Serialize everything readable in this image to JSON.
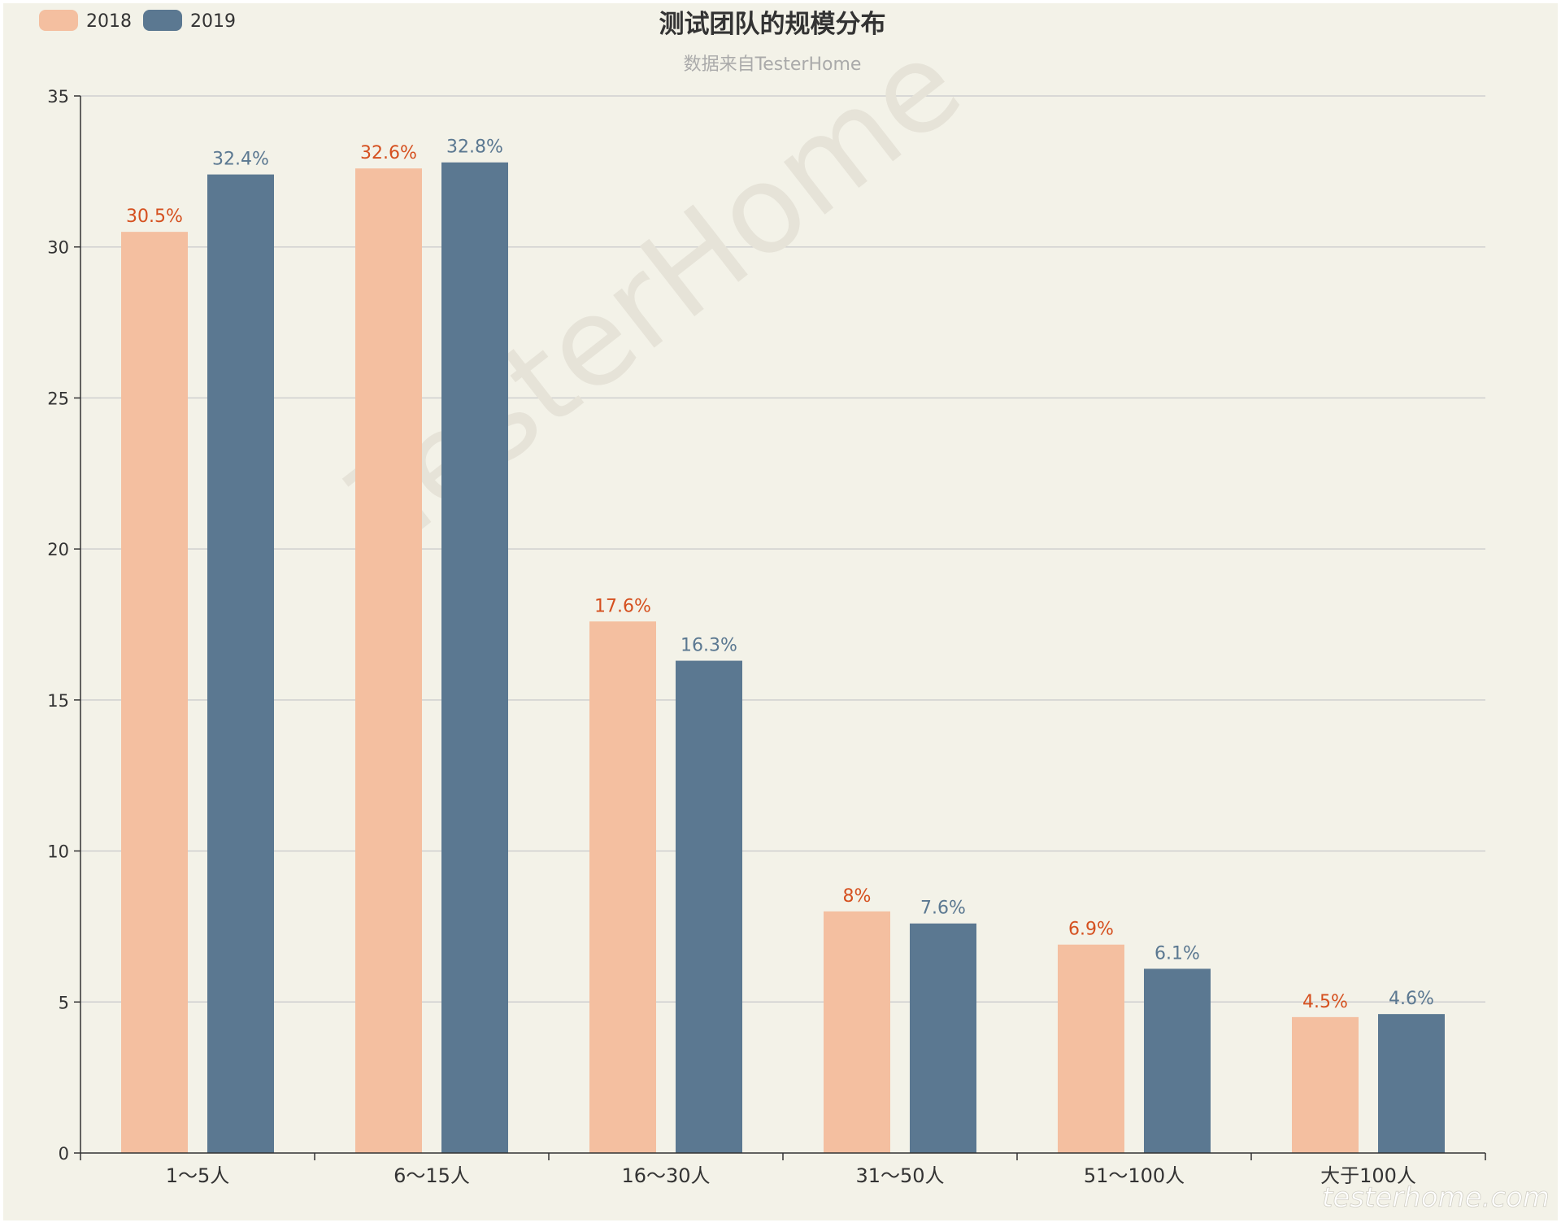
{
  "chart_data": {
    "type": "bar",
    "title": "测试团队的规模分布",
    "subtitle": "数据来自TesterHome",
    "categories": [
      "1～5人",
      "6～15人",
      "16～30人",
      "31～50人",
      "51～100人",
      "大于100人"
    ],
    "series": [
      {
        "name": "2018",
        "values": [
          30.5,
          32.6,
          17.6,
          8,
          6.9,
          4.5
        ],
        "labels": [
          "30.5%",
          "32.6%",
          "17.6%",
          "8%",
          "6.9%",
          "4.5%"
        ],
        "color": "#f4bfa0",
        "label_color": "#d5501f"
      },
      {
        "name": "2019",
        "values": [
          32.4,
          32.8,
          16.3,
          7.6,
          6.1,
          4.6
        ],
        "labels": [
          "32.4%",
          "32.8%",
          "16.3%",
          "7.6%",
          "6.1%",
          "4.6%"
        ],
        "color": "#5b7891",
        "label_color": "#5b7891"
      }
    ],
    "ylim": [
      0,
      35
    ],
    "yticks": [
      "0",
      "5",
      "10",
      "15",
      "20",
      "25",
      "30",
      "35"
    ],
    "grid": true,
    "legend_position": "top-left",
    "background_color": "#f3f2e8",
    "watermark": "TesterHome",
    "corner_watermark": "testerhome.com"
  }
}
